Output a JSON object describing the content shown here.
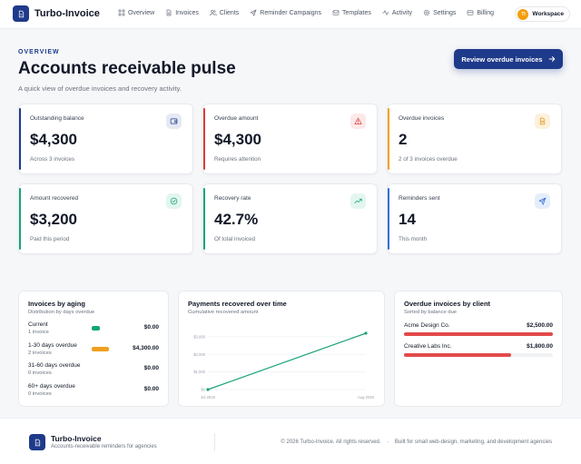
{
  "app": {
    "name": "Turbo-Invoice"
  },
  "nav": [
    {
      "label": "Overview",
      "icon": "grid-icon"
    },
    {
      "label": "Invoices",
      "icon": "document-icon"
    },
    {
      "label": "Clients",
      "icon": "users-icon"
    },
    {
      "label": "Reminder Campaigns",
      "icon": "send-icon"
    },
    {
      "label": "Templates",
      "icon": "mail-icon"
    },
    {
      "label": "Activity",
      "icon": "activity-icon"
    },
    {
      "label": "Settings",
      "icon": "gear-icon"
    },
    {
      "label": "Billing",
      "icon": "credit-card-icon"
    }
  ],
  "workspace": {
    "initials": "TI",
    "label": "Workspace"
  },
  "hero": {
    "eyebrow": "OVERVIEW",
    "title": "Accounts receivable pulse",
    "subtitle": "A quick view of overdue invoices and recovery activity.",
    "cta": "Review overdue invoices"
  },
  "cards": [
    {
      "label": "Outstanding balance",
      "value": "$4,300",
      "note": "Across 3 invoices",
      "icon": "wallet-icon",
      "accent": "#1e3a8a",
      "icon_bg": "#e6e9f4",
      "icon_color": "#1e3a8a"
    },
    {
      "label": "Overdue amount",
      "value": "$4,300",
      "note": "Requires attention",
      "icon": "warning-icon",
      "accent": "#dc3b3b",
      "icon_bg": "#fde8e8",
      "icon_color": "#dc3b3b"
    },
    {
      "label": "Overdue invoices",
      "value": "2",
      "note": "2 of 3 invoices overdue",
      "icon": "invoice-icon",
      "accent": "#f0a020",
      "icon_bg": "#fdf1dc",
      "icon_color": "#e0951a"
    },
    {
      "label": "Amount recovered",
      "value": "$3,200",
      "note": "Paid this period",
      "icon": "check-circle-icon",
      "accent": "#16a37a",
      "icon_bg": "#e2f6ef",
      "icon_color": "#16a37a"
    },
    {
      "label": "Recovery rate",
      "value": "42.7%",
      "note": "Of total invoiced",
      "icon": "trending-up-icon",
      "accent": "#16a37a",
      "icon_bg": "#e2f6ef",
      "icon_color": "#16a37a"
    },
    {
      "label": "Reminders sent",
      "value": "14",
      "note": "This month",
      "icon": "send-icon",
      "accent": "#2f6fd6",
      "icon_bg": "#e5eefb",
      "icon_color": "#2f6fd6"
    }
  ],
  "aging": {
    "title": "Invoices by aging",
    "subtitle": "Distribution by days overdue",
    "rows": [
      {
        "label": "Current",
        "count": "1 invoice",
        "amount": "$0.00",
        "share": 0.08,
        "color": "#16a37a"
      },
      {
        "label": "1-30 days overdue",
        "count": "2 invoices",
        "amount": "$4,300.00",
        "share": 0.17,
        "color": "#f0a020"
      },
      {
        "label": "31-60 days overdue",
        "count": "0 invoices",
        "amount": "$0.00",
        "share": 0,
        "color": "#e24a4a"
      },
      {
        "label": "60+ days overdue",
        "count": "0 invoices",
        "amount": "$0.00",
        "share": 0,
        "color": "#b91c1c"
      }
    ]
  },
  "payments": {
    "title": "Payments recovered over time",
    "subtitle": "Cumulative recovered amount"
  },
  "chart_data": {
    "type": "line",
    "x": [
      "Jul 2026",
      "Aug 2026"
    ],
    "series": [
      {
        "values": [
          0,
          3200
        ],
        "color": "#16a37a"
      }
    ],
    "yticks": [
      "$0",
      "$1,000",
      "$2,000",
      "$3,000"
    ],
    "ytick_values": [
      0,
      1000,
      2000,
      3000
    ],
    "ylim": [
      0,
      3200
    ],
    "grid": true
  },
  "clients": {
    "title": "Overdue invoices by client",
    "subtitle": "Sorted by balance due",
    "rows": [
      {
        "name": "Acme Design Co.",
        "amount": "$2,500.00",
        "share": 1.0
      },
      {
        "name": "Creative Labs Inc.",
        "amount": "$1,800.00",
        "share": 0.72
      }
    ]
  },
  "footer": {
    "name": "Turbo-Invoice",
    "tagline": "Accounts-receivable reminders for agencies",
    "copyright": "© 2026 Turbo-Invoice. All rights reserved.",
    "sep": "·",
    "built": "Built for small web-design, marketing, and development agencies"
  }
}
